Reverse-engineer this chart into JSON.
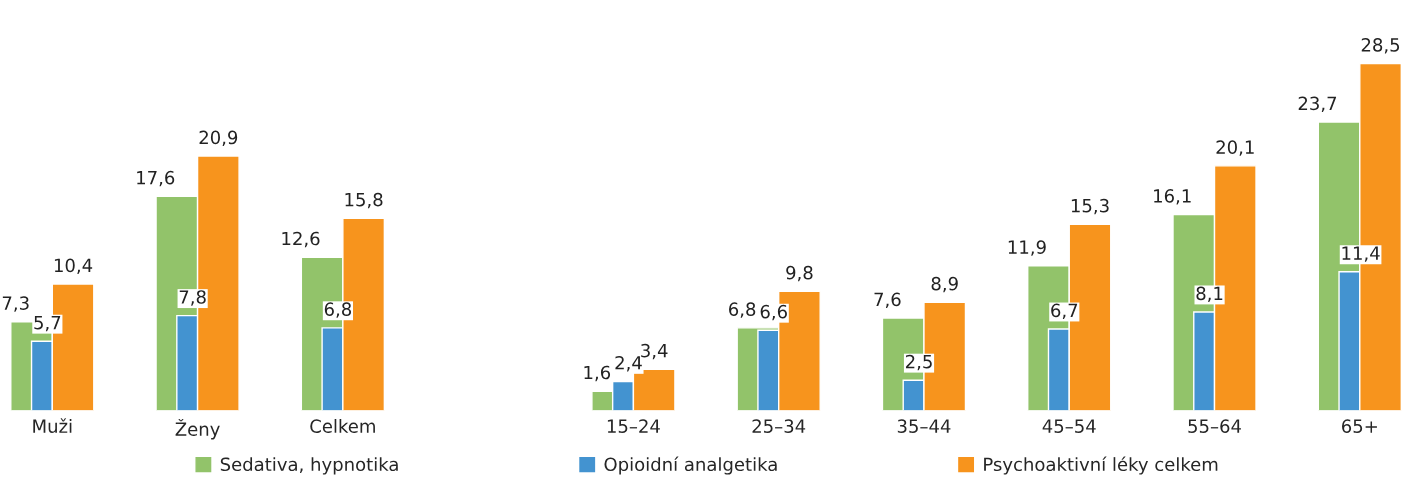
{
  "chart_data": {
    "type": "bar",
    "categories": [
      "Muži",
      "Ženy",
      "Celkem",
      null,
      "15–24",
      "25–34",
      "35–44",
      "45–54",
      "55–64",
      "65+"
    ],
    "series": [
      {
        "name": "Sedativa, hypnotika",
        "color": "#92c36a",
        "values": [
          7.3,
          17.6,
          12.6,
          null,
          1.6,
          6.8,
          7.6,
          11.9,
          16.1,
          23.7
        ],
        "value_labels": [
          "7,3",
          "17,6",
          "12,6",
          null,
          "1,6",
          "6,8",
          "7,6",
          "11,9",
          "16,1",
          "23,7"
        ]
      },
      {
        "name": "Opioidní analgetika",
        "color": "#4393d0",
        "values": [
          5.7,
          7.8,
          6.8,
          null,
          2.4,
          6.6,
          2.5,
          6.7,
          8.1,
          11.4
        ],
        "value_labels": [
          "5,7",
          "7,8",
          "6,8",
          null,
          "2,4",
          "6,6",
          "2,5",
          "6,7",
          "8,1",
          "11,4"
        ]
      },
      {
        "name": "Psychoaktivní léky celkem",
        "color": "#f7941d",
        "values": [
          10.4,
          20.9,
          15.8,
          null,
          3.4,
          9.8,
          8.9,
          15.3,
          20.1,
          28.5
        ],
        "value_labels": [
          "10,4",
          "20,9",
          "15,8",
          null,
          "3,4",
          "9,8",
          "8,9",
          "15,3",
          "20,1",
          "28,5"
        ]
      }
    ],
    "legend": "bottom",
    "grid": false
  }
}
